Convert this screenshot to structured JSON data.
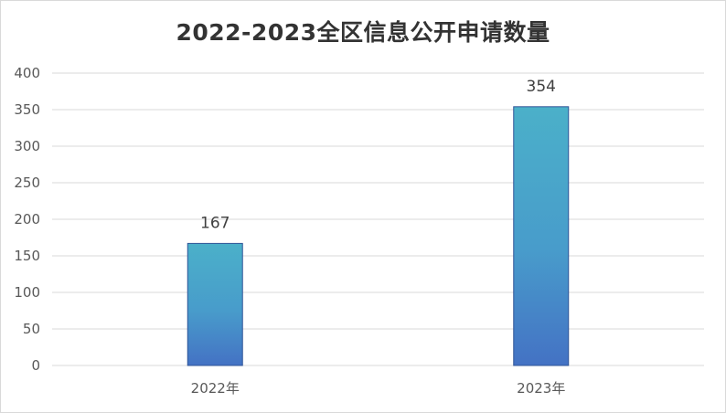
{
  "chart_data": {
    "type": "bar",
    "title": "2022-2023全区信息公开申请数量",
    "categories": [
      "2022年",
      "2023年"
    ],
    "values": [
      167,
      354
    ],
    "data_labels": [
      "167",
      "354"
    ],
    "ylim": [
      0,
      400
    ],
    "yticks": [
      0,
      50,
      100,
      150,
      200,
      250,
      300,
      350,
      400
    ],
    "grid": true,
    "legend": "none",
    "colors": {
      "bar_top": "#4bb0c9",
      "bar_bottom": "#4472c4",
      "bar_edge": "#2f5597",
      "grid": "#d9d9d9"
    }
  }
}
